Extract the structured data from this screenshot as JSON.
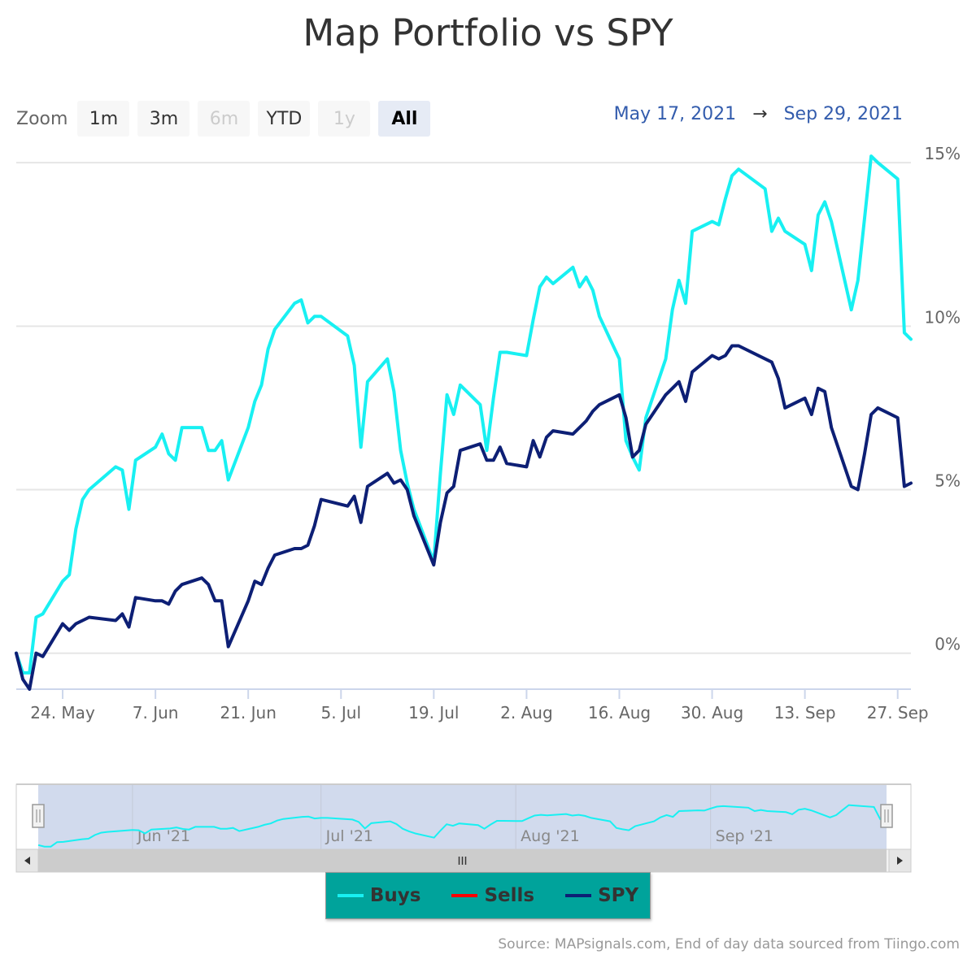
{
  "title": "Map Portfolio vs SPY",
  "zoom": {
    "label": "Zoom",
    "buttons": [
      {
        "label": "1m",
        "state": "normal"
      },
      {
        "label": "3m",
        "state": "normal"
      },
      {
        "label": "6m",
        "state": "disabled"
      },
      {
        "label": "YTD",
        "state": "normal"
      },
      {
        "label": "1y",
        "state": "disabled"
      },
      {
        "label": "All",
        "state": "active"
      }
    ]
  },
  "range": {
    "from": "May 17, 2021",
    "arrow": "→",
    "to": "Sep 29, 2021"
  },
  "credits": "Source: MAPsignals.com, End of day data sourced from Tiingo.com",
  "navigator": {
    "month_labels": [
      "Jun '21",
      "Jul '21",
      "Aug '21",
      "Sep '21"
    ],
    "scrollbar_grip": "III",
    "left_arrow": "◀",
    "right_arrow": "▶",
    "handle_grip": "||"
  },
  "colors": {
    "buys": "#18f0f2",
    "sells": "#ff0000",
    "spy": "#0d1f75",
    "legend_bg": "#00a39b",
    "range_text": "#335cad"
  },
  "chart_data": {
    "type": "line",
    "title": "Map Portfolio vs SPY",
    "x_start": "2021-05-17",
    "x_end": "2021-09-29",
    "x_ticks": [
      "24. May",
      "7. Jun",
      "21. Jun",
      "5. Jul",
      "19. Jul",
      "2. Aug",
      "16. Aug",
      "30. Aug",
      "13. Sep",
      "27. Sep"
    ],
    "y_ticks": [
      "0%",
      "5%",
      "10%",
      "15%"
    ],
    "ylim": [
      -1.1,
      15.5
    ],
    "grid": true,
    "legend": "bottom-center",
    "series": [
      {
        "name": "Buys",
        "color": "#18f0f2",
        "points": [
          [
            "2021-05-17",
            0.0
          ],
          [
            "2021-05-18",
            -0.6
          ],
          [
            "2021-05-19",
            -0.6
          ],
          [
            "2021-05-20",
            1.1
          ],
          [
            "2021-05-21",
            1.2
          ],
          [
            "2021-05-24",
            2.2
          ],
          [
            "2021-05-25",
            2.4
          ],
          [
            "2021-05-26",
            3.8
          ],
          [
            "2021-05-27",
            4.7
          ],
          [
            "2021-05-28",
            5.0
          ],
          [
            "2021-06-01",
            5.7
          ],
          [
            "2021-06-02",
            5.6
          ],
          [
            "2021-06-03",
            4.4
          ],
          [
            "2021-06-04",
            5.9
          ],
          [
            "2021-06-07",
            6.3
          ],
          [
            "2021-06-08",
            6.7
          ],
          [
            "2021-06-09",
            6.1
          ],
          [
            "2021-06-10",
            5.9
          ],
          [
            "2021-06-11",
            6.9
          ],
          [
            "2021-06-14",
            6.9
          ],
          [
            "2021-06-15",
            6.2
          ],
          [
            "2021-06-16",
            6.2
          ],
          [
            "2021-06-17",
            6.5
          ],
          [
            "2021-06-18",
            5.3
          ],
          [
            "2021-06-21",
            6.9
          ],
          [
            "2021-06-22",
            7.7
          ],
          [
            "2021-06-23",
            8.2
          ],
          [
            "2021-06-24",
            9.3
          ],
          [
            "2021-06-25",
            9.9
          ],
          [
            "2021-06-28",
            10.7
          ],
          [
            "2021-06-29",
            10.8
          ],
          [
            "2021-06-30",
            10.1
          ],
          [
            "2021-07-01",
            10.3
          ],
          [
            "2021-07-02",
            10.3
          ],
          [
            "2021-07-06",
            9.7
          ],
          [
            "2021-07-07",
            8.8
          ],
          [
            "2021-07-08",
            6.3
          ],
          [
            "2021-07-09",
            8.3
          ],
          [
            "2021-07-12",
            9.0
          ],
          [
            "2021-07-13",
            8.0
          ],
          [
            "2021-07-14",
            6.2
          ],
          [
            "2021-07-15",
            5.2
          ],
          [
            "2021-07-16",
            4.4
          ],
          [
            "2021-07-19",
            2.8
          ],
          [
            "2021-07-20",
            5.5
          ],
          [
            "2021-07-21",
            7.9
          ],
          [
            "2021-07-22",
            7.3
          ],
          [
            "2021-07-23",
            8.2
          ],
          [
            "2021-07-26",
            7.6
          ],
          [
            "2021-07-27",
            6.2
          ],
          [
            "2021-07-28",
            7.8
          ],
          [
            "2021-07-29",
            9.2
          ],
          [
            "2021-07-30",
            9.2
          ],
          [
            "2021-08-02",
            9.1
          ],
          [
            "2021-08-03",
            10.2
          ],
          [
            "2021-08-04",
            11.2
          ],
          [
            "2021-08-05",
            11.5
          ],
          [
            "2021-08-06",
            11.3
          ],
          [
            "2021-08-09",
            11.8
          ],
          [
            "2021-08-10",
            11.2
          ],
          [
            "2021-08-11",
            11.5
          ],
          [
            "2021-08-12",
            11.1
          ],
          [
            "2021-08-13",
            10.3
          ],
          [
            "2021-08-16",
            9.0
          ],
          [
            "2021-08-17",
            6.5
          ],
          [
            "2021-08-18",
            6.0
          ],
          [
            "2021-08-19",
            5.6
          ],
          [
            "2021-08-20",
            7.2
          ],
          [
            "2021-08-23",
            9.0
          ],
          [
            "2021-08-24",
            10.5
          ],
          [
            "2021-08-25",
            11.4
          ],
          [
            "2021-08-26",
            10.7
          ],
          [
            "2021-08-27",
            12.9
          ],
          [
            "2021-08-30",
            13.2
          ],
          [
            "2021-08-31",
            13.1
          ],
          [
            "2021-09-01",
            13.9
          ],
          [
            "2021-09-02",
            14.6
          ],
          [
            "2021-09-03",
            14.8
          ],
          [
            "2021-09-07",
            14.2
          ],
          [
            "2021-09-08",
            12.9
          ],
          [
            "2021-09-09",
            13.3
          ],
          [
            "2021-09-10",
            12.9
          ],
          [
            "2021-09-13",
            12.5
          ],
          [
            "2021-09-14",
            11.7
          ],
          [
            "2021-09-15",
            13.4
          ],
          [
            "2021-09-16",
            13.8
          ],
          [
            "2021-09-17",
            13.2
          ],
          [
            "2021-09-20",
            10.5
          ],
          [
            "2021-09-21",
            11.4
          ],
          [
            "2021-09-22",
            13.3
          ],
          [
            "2021-09-23",
            15.2
          ],
          [
            "2021-09-24",
            15.0
          ],
          [
            "2021-09-27",
            14.5
          ],
          [
            "2021-09-28",
            9.8
          ],
          [
            "2021-09-29",
            9.6
          ]
        ]
      },
      {
        "name": "Sells",
        "color": "#ff0000",
        "points": []
      },
      {
        "name": "SPY",
        "color": "#0d1f75",
        "points": [
          [
            "2021-05-17",
            0.0
          ],
          [
            "2021-05-18",
            -0.8
          ],
          [
            "2021-05-19",
            -1.1
          ],
          [
            "2021-05-20",
            0.0
          ],
          [
            "2021-05-21",
            -0.1
          ],
          [
            "2021-05-24",
            0.9
          ],
          [
            "2021-05-25",
            0.7
          ],
          [
            "2021-05-26",
            0.9
          ],
          [
            "2021-05-27",
            1.0
          ],
          [
            "2021-05-28",
            1.1
          ],
          [
            "2021-06-01",
            1.0
          ],
          [
            "2021-06-02",
            1.2
          ],
          [
            "2021-06-03",
            0.8
          ],
          [
            "2021-06-04",
            1.7
          ],
          [
            "2021-06-07",
            1.6
          ],
          [
            "2021-06-08",
            1.6
          ],
          [
            "2021-06-09",
            1.5
          ],
          [
            "2021-06-10",
            1.9
          ],
          [
            "2021-06-11",
            2.1
          ],
          [
            "2021-06-14",
            2.3
          ],
          [
            "2021-06-15",
            2.1
          ],
          [
            "2021-06-16",
            1.6
          ],
          [
            "2021-06-17",
            1.6
          ],
          [
            "2021-06-18",
            0.2
          ],
          [
            "2021-06-21",
            1.6
          ],
          [
            "2021-06-22",
            2.2
          ],
          [
            "2021-06-23",
            2.1
          ],
          [
            "2021-06-24",
            2.6
          ],
          [
            "2021-06-25",
            3.0
          ],
          [
            "2021-06-28",
            3.2
          ],
          [
            "2021-06-29",
            3.2
          ],
          [
            "2021-06-30",
            3.3
          ],
          [
            "2021-07-01",
            3.9
          ],
          [
            "2021-07-02",
            4.7
          ],
          [
            "2021-07-06",
            4.5
          ],
          [
            "2021-07-07",
            4.8
          ],
          [
            "2021-07-08",
            4.0
          ],
          [
            "2021-07-09",
            5.1
          ],
          [
            "2021-07-12",
            5.5
          ],
          [
            "2021-07-13",
            5.2
          ],
          [
            "2021-07-14",
            5.3
          ],
          [
            "2021-07-15",
            5.0
          ],
          [
            "2021-07-16",
            4.2
          ],
          [
            "2021-07-19",
            2.7
          ],
          [
            "2021-07-20",
            4.0
          ],
          [
            "2021-07-21",
            4.9
          ],
          [
            "2021-07-22",
            5.1
          ],
          [
            "2021-07-23",
            6.2
          ],
          [
            "2021-07-26",
            6.4
          ],
          [
            "2021-07-27",
            5.9
          ],
          [
            "2021-07-28",
            5.9
          ],
          [
            "2021-07-29",
            6.3
          ],
          [
            "2021-07-30",
            5.8
          ],
          [
            "2021-08-02",
            5.7
          ],
          [
            "2021-08-03",
            6.5
          ],
          [
            "2021-08-04",
            6.0
          ],
          [
            "2021-08-05",
            6.6
          ],
          [
            "2021-08-06",
            6.8
          ],
          [
            "2021-08-09",
            6.7
          ],
          [
            "2021-08-10",
            6.9
          ],
          [
            "2021-08-11",
            7.1
          ],
          [
            "2021-08-12",
            7.4
          ],
          [
            "2021-08-13",
            7.6
          ],
          [
            "2021-08-16",
            7.9
          ],
          [
            "2021-08-17",
            7.2
          ],
          [
            "2021-08-18",
            6.0
          ],
          [
            "2021-08-19",
            6.2
          ],
          [
            "2021-08-20",
            7.0
          ],
          [
            "2021-08-23",
            7.9
          ],
          [
            "2021-08-24",
            8.1
          ],
          [
            "2021-08-25",
            8.3
          ],
          [
            "2021-08-26",
            7.7
          ],
          [
            "2021-08-27",
            8.6
          ],
          [
            "2021-08-30",
            9.1
          ],
          [
            "2021-08-31",
            9.0
          ],
          [
            "2021-09-01",
            9.1
          ],
          [
            "2021-09-02",
            9.4
          ],
          [
            "2021-09-03",
            9.4
          ],
          [
            "2021-09-07",
            9.0
          ],
          [
            "2021-09-08",
            8.9
          ],
          [
            "2021-09-09",
            8.4
          ],
          [
            "2021-09-10",
            7.5
          ],
          [
            "2021-09-13",
            7.8
          ],
          [
            "2021-09-14",
            7.3
          ],
          [
            "2021-09-15",
            8.1
          ],
          [
            "2021-09-16",
            8.0
          ],
          [
            "2021-09-17",
            6.9
          ],
          [
            "2021-09-20",
            5.1
          ],
          [
            "2021-09-21",
            5.0
          ],
          [
            "2021-09-22",
            6.1
          ],
          [
            "2021-09-23",
            7.3
          ],
          [
            "2021-09-24",
            7.5
          ],
          [
            "2021-09-27",
            7.2
          ],
          [
            "2021-09-28",
            5.1
          ],
          [
            "2021-09-29",
            5.2
          ]
        ]
      }
    ]
  }
}
